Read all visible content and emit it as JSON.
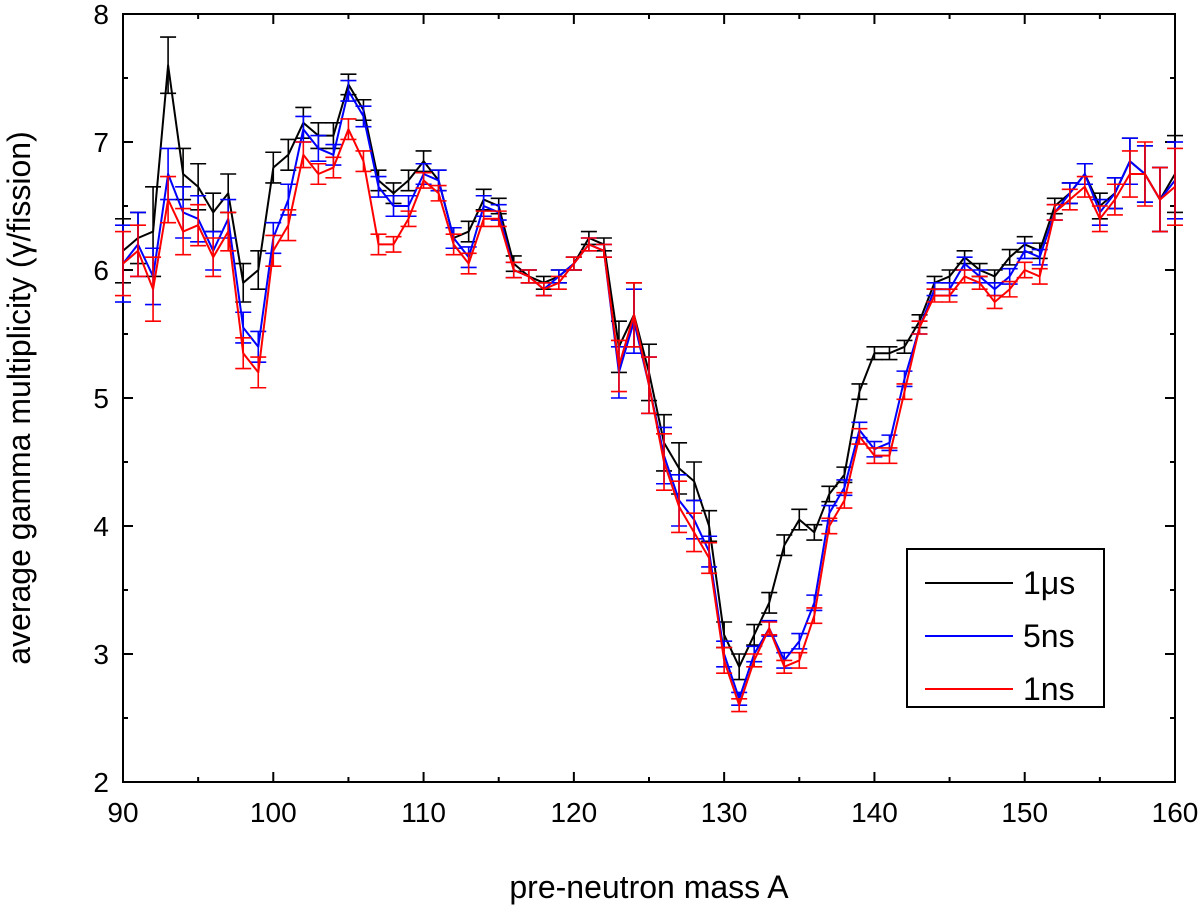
{
  "chart_data": {
    "type": "line",
    "title": "",
    "xlabel": "pre-neutron mass A",
    "ylabel": "average gamma multiplicity (γ/fission)",
    "xlim": [
      90,
      160
    ],
    "ylim": [
      2,
      8
    ],
    "xticks": [
      90,
      100,
      110,
      120,
      130,
      140,
      150,
      160
    ],
    "yticks": [
      2,
      3,
      4,
      5,
      6,
      7,
      8
    ],
    "grid": false,
    "legend_position": "bottom-right",
    "x": [
      90,
      91,
      92,
      93,
      94,
      95,
      96,
      97,
      98,
      99,
      100,
      101,
      102,
      103,
      104,
      105,
      106,
      107,
      108,
      109,
      110,
      111,
      112,
      113,
      114,
      115,
      116,
      117,
      118,
      119,
      120,
      121,
      122,
      123,
      124,
      125,
      126,
      127,
      128,
      129,
      130,
      131,
      132,
      133,
      134,
      135,
      136,
      137,
      138,
      139,
      140,
      141,
      142,
      143,
      144,
      145,
      146,
      147,
      148,
      149,
      150,
      151,
      152,
      153,
      154,
      155,
      156,
      157,
      158,
      159,
      160
    ],
    "series": [
      {
        "name": "1μs",
        "color": "#000000",
        "values": [
          6.15,
          6.25,
          6.3,
          7.6,
          6.75,
          6.65,
          6.45,
          6.6,
          5.9,
          6.0,
          6.8,
          6.9,
          7.15,
          7.05,
          7.05,
          7.45,
          7.25,
          6.7,
          6.6,
          6.7,
          6.85,
          6.7,
          6.25,
          6.3,
          6.55,
          6.5,
          6.05,
          5.95,
          5.9,
          5.95,
          6.05,
          6.25,
          6.2,
          5.4,
          5.65,
          5.2,
          4.65,
          4.45,
          4.35,
          4.0,
          3.15,
          2.9,
          3.15,
          3.4,
          3.85,
          4.05,
          3.95,
          4.25,
          4.4,
          5.05,
          5.35,
          5.35,
          5.4,
          5.6,
          5.9,
          5.95,
          6.1,
          6.0,
          5.95,
          6.1,
          6.2,
          6.15,
          6.5,
          6.6,
          6.75,
          6.5,
          6.6,
          6.85,
          6.75,
          6.55,
          6.75
        ],
        "errors": [
          0.25,
          0.2,
          0.35,
          0.22,
          0.2,
          0.18,
          0.15,
          0.15,
          0.15,
          0.15,
          0.12,
          0.12,
          0.12,
          0.1,
          0.1,
          0.08,
          0.08,
          0.08,
          0.08,
          0.08,
          0.08,
          0.08,
          0.08,
          0.08,
          0.08,
          0.06,
          0.06,
          0.05,
          0.05,
          0.05,
          0.05,
          0.05,
          0.05,
          0.2,
          0.25,
          0.22,
          0.22,
          0.2,
          0.15,
          0.12,
          0.1,
          0.1,
          0.08,
          0.08,
          0.08,
          0.08,
          0.06,
          0.06,
          0.06,
          0.06,
          0.05,
          0.05,
          0.05,
          0.05,
          0.05,
          0.05,
          0.05,
          0.05,
          0.05,
          0.06,
          0.06,
          0.06,
          0.06,
          0.08,
          0.08,
          0.1,
          0.12,
          0.18,
          0.22,
          0.25,
          0.3
        ]
      },
      {
        "name": "5ns",
        "color": "#0000ff",
        "values": [
          6.05,
          6.2,
          5.95,
          6.75,
          6.45,
          6.4,
          6.15,
          6.4,
          5.55,
          5.4,
          6.25,
          6.55,
          7.1,
          6.95,
          6.9,
          7.4,
          7.2,
          6.65,
          6.5,
          6.5,
          6.75,
          6.7,
          6.25,
          6.1,
          6.5,
          6.45,
          6.0,
          5.95,
          5.85,
          5.95,
          6.05,
          6.2,
          6.15,
          5.2,
          5.6,
          5.1,
          4.55,
          4.2,
          4.05,
          3.8,
          3.0,
          2.65,
          3.0,
          3.2,
          2.95,
          3.1,
          3.4,
          4.1,
          4.3,
          4.75,
          4.6,
          4.65,
          5.15,
          5.55,
          5.85,
          5.85,
          6.05,
          5.95,
          5.85,
          5.95,
          6.15,
          6.1,
          6.45,
          6.6,
          6.75,
          6.45,
          6.6,
          6.85,
          6.75,
          6.55,
          6.7
        ],
        "errors": [
          0.3,
          0.25,
          0.22,
          0.2,
          0.2,
          0.18,
          0.15,
          0.15,
          0.12,
          0.12,
          0.12,
          0.12,
          0.1,
          0.1,
          0.08,
          0.08,
          0.08,
          0.08,
          0.08,
          0.08,
          0.08,
          0.08,
          0.08,
          0.08,
          0.08,
          0.06,
          0.06,
          0.05,
          0.05,
          0.05,
          0.05,
          0.05,
          0.05,
          0.2,
          0.25,
          0.22,
          0.22,
          0.2,
          0.15,
          0.12,
          0.1,
          0.05,
          0.06,
          0.06,
          0.06,
          0.06,
          0.06,
          0.06,
          0.06,
          0.06,
          0.06,
          0.06,
          0.06,
          0.05,
          0.05,
          0.05,
          0.05,
          0.05,
          0.05,
          0.06,
          0.06,
          0.06,
          0.06,
          0.08,
          0.08,
          0.1,
          0.12,
          0.18,
          0.22,
          0.25,
          0.3
        ]
      },
      {
        "name": "1ns",
        "color": "#ff0000",
        "values": [
          6.05,
          6.15,
          5.85,
          6.55,
          6.3,
          6.35,
          6.1,
          6.3,
          5.35,
          5.2,
          6.15,
          6.35,
          6.9,
          6.75,
          6.8,
          7.1,
          6.85,
          6.2,
          6.2,
          6.4,
          6.7,
          6.6,
          6.2,
          6.05,
          6.4,
          6.4,
          6.0,
          5.95,
          5.85,
          5.9,
          6.05,
          6.2,
          6.15,
          5.25,
          5.65,
          5.1,
          4.5,
          4.15,
          3.95,
          3.75,
          2.95,
          2.6,
          2.95,
          3.2,
          2.9,
          2.95,
          3.3,
          4.0,
          4.2,
          4.7,
          4.55,
          4.55,
          5.05,
          5.55,
          5.8,
          5.8,
          5.95,
          5.9,
          5.75,
          5.85,
          6.0,
          5.95,
          6.45,
          6.55,
          6.65,
          6.4,
          6.55,
          6.75,
          6.75,
          6.55,
          6.65
        ],
        "errors": [
          0.25,
          0.2,
          0.25,
          0.18,
          0.18,
          0.16,
          0.15,
          0.15,
          0.12,
          0.12,
          0.12,
          0.12,
          0.1,
          0.08,
          0.08,
          0.08,
          0.08,
          0.08,
          0.06,
          0.06,
          0.06,
          0.06,
          0.08,
          0.08,
          0.06,
          0.06,
          0.06,
          0.05,
          0.05,
          0.05,
          0.05,
          0.05,
          0.05,
          0.2,
          0.25,
          0.22,
          0.22,
          0.2,
          0.15,
          0.12,
          0.1,
          0.05,
          0.05,
          0.05,
          0.05,
          0.06,
          0.06,
          0.06,
          0.06,
          0.06,
          0.06,
          0.06,
          0.06,
          0.05,
          0.05,
          0.05,
          0.05,
          0.05,
          0.05,
          0.06,
          0.06,
          0.06,
          0.06,
          0.08,
          0.08,
          0.1,
          0.12,
          0.18,
          0.25,
          0.25,
          0.3
        ]
      }
    ]
  }
}
